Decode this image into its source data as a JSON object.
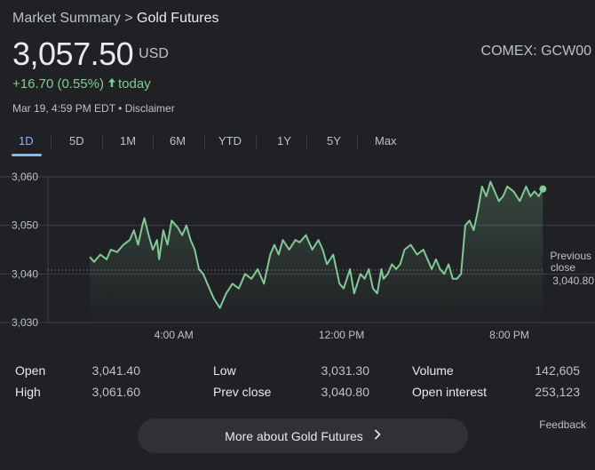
{
  "breadcrumb": {
    "parent": "Market Summary",
    "separator": ">",
    "current": "Gold Futures"
  },
  "quote": {
    "price": "3,057.50",
    "currency": "USD",
    "exchange": "COMEX: GCW00",
    "change": "+16.70 (0.55%)",
    "change_period": "today",
    "timestamp": "Mar 19, 4:59 PM EDT",
    "disclaimer": "Disclaimer",
    "up_color": "#81c995"
  },
  "tabs": [
    "1D",
    "5D",
    "1M",
    "6M",
    "YTD",
    "1Y",
    "5Y",
    "Max"
  ],
  "active_tab": "1D",
  "previous_close": {
    "label_line1": "Previous",
    "label_line2": "close",
    "value": "3,040.80"
  },
  "chart_data": {
    "type": "line",
    "title": "",
    "xlabel": "",
    "ylabel": "",
    "ylim": [
      3030,
      3060
    ],
    "yticks": [
      "3,060",
      "3,050",
      "3,040",
      "3,030"
    ],
    "ytick_values": [
      3060,
      3050,
      3040,
      3030
    ],
    "xticks": [
      "4:00 AM",
      "12:00 PM",
      "8:00 PM"
    ],
    "xtick_hours": [
      4,
      12,
      20
    ],
    "xlim_hours": [
      -2,
      24
    ],
    "reference_line": 3040.8,
    "line_color": "#81c995",
    "series": [
      {
        "x": [
          0,
          0.2,
          0.5,
          0.8,
          1.0,
          1.3,
          1.6,
          1.9,
          2.1,
          2.3,
          2.5,
          2.6,
          2.8,
          3.0,
          3.2,
          3.3,
          3.5,
          3.7,
          3.9,
          4.2,
          4.4,
          4.6,
          4.8,
          5.0,
          5.2,
          5.4,
          5.6,
          5.9,
          6.2,
          6.5,
          6.8,
          7.1,
          7.4,
          7.7,
          8.0,
          8.3,
          8.6,
          8.8,
          9.0,
          9.2,
          9.5,
          9.8,
          10.0,
          10.3,
          10.6,
          10.9,
          11.1,
          11.3,
          11.6,
          11.9,
          12.1,
          12.4,
          12.6,
          12.9,
          13.1,
          13.3,
          13.5,
          13.7,
          13.9,
          14.0,
          14.2,
          14.4,
          14.6,
          14.8,
          15.0,
          15.3,
          15.6,
          15.9,
          16.1,
          16.3,
          16.5,
          16.7,
          16.9,
          17.1,
          17.3,
          17.5,
          17.7,
          17.9,
          18.1,
          18.3,
          18.5,
          18.7,
          18.9,
          19.1,
          19.3,
          19.5,
          19.7,
          19.9,
          20.2,
          20.5,
          20.8,
          21.0,
          21.2,
          21.4,
          21.6
        ],
        "y": [
          3043.5,
          3042.5,
          3044,
          3043,
          3045,
          3044.5,
          3046,
          3047,
          3049,
          3046,
          3050,
          3051.5,
          3048,
          3045,
          3047,
          3043,
          3049,
          3046,
          3051,
          3049.5,
          3048,
          3050,
          3047,
          3045,
          3041,
          3040,
          3038,
          3035,
          3033,
          3036,
          3038,
          3037,
          3040,
          3039,
          3041,
          3038,
          3044,
          3046,
          3044,
          3047,
          3045,
          3047,
          3046.5,
          3048,
          3045,
          3047,
          3045,
          3042,
          3044,
          3038,
          3037,
          3041,
          3036,
          3040,
          3039,
          3041,
          3037,
          3036,
          3041,
          3039,
          3040,
          3042,
          3041,
          3042,
          3045,
          3046,
          3044,
          3045,
          3043,
          3041,
          3043,
          3041,
          3040,
          3042,
          3039,
          3039,
          3040,
          3050,
          3051,
          3049,
          3053,
          3058,
          3056,
          3059,
          3057,
          3055,
          3056,
          3058,
          3057,
          3055,
          3058,
          3056,
          3057,
          3056,
          3057.5
        ]
      }
    ]
  },
  "stats": {
    "open_label": "Open",
    "open_value": "3,041.40",
    "high_label": "High",
    "high_value": "3,061.60",
    "low_label": "Low",
    "low_value": "3,031.30",
    "prev_close_label": "Prev close",
    "prev_close_value": "3,040.80",
    "volume_label": "Volume",
    "volume_value": "142,605",
    "open_interest_label": "Open interest",
    "open_interest_value": "253,123"
  },
  "footer": {
    "feedback": "Feedback",
    "more_button": "More about Gold Futures",
    "more_icon": "chevron-right-icon"
  }
}
